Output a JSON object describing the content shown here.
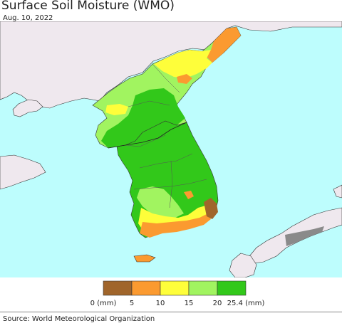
{
  "title": "Surface Soil Moisture (WMO)",
  "date": "Aug. 10, 2022",
  "legend": {
    "colors": [
      "#a0652b",
      "#fb9a30",
      "#fefe3a",
      "#a1f460",
      "#32c81a"
    ],
    "tick_labels": [
      "0 (mm)",
      "5",
      "10",
      "15",
      "20",
      "25.4 (mm)"
    ]
  },
  "map_colors": {
    "ocean": "#bdfdfd",
    "foreign_land": "#efe8ee"
  },
  "source": "Source: World Meteorological Organization"
}
